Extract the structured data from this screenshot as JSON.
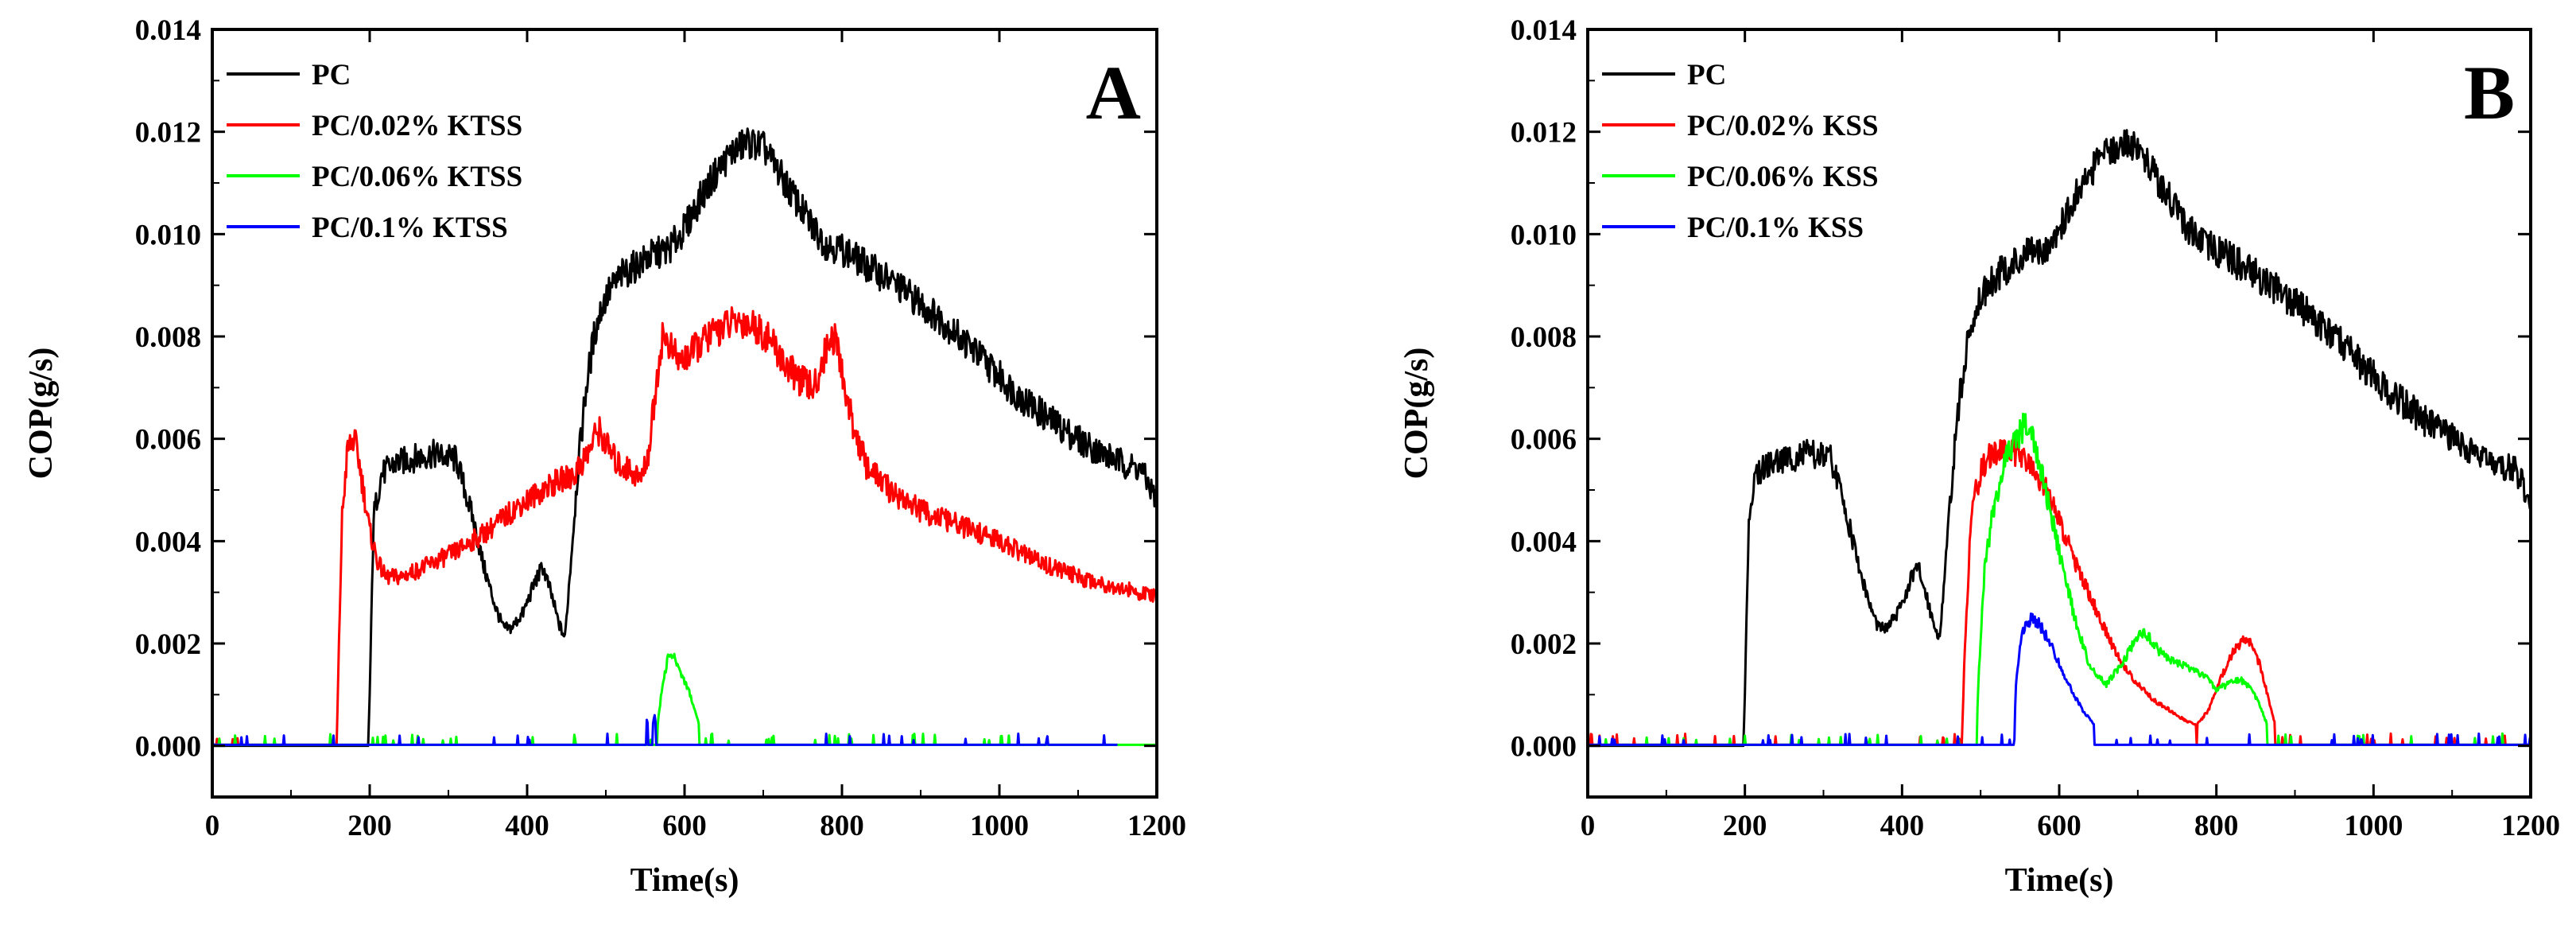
{
  "chart_data": [
    {
      "type": "line",
      "panel_label": "A",
      "xlabel": "Time(s)",
      "ylabel": "COP(g/s)",
      "xlim": [
        0,
        1200
      ],
      "ylim": [
        -0.001,
        0.014
      ],
      "xticks": [
        0,
        200,
        400,
        600,
        800,
        1000,
        1200
      ],
      "xtick_labels": [
        "0",
        "200",
        "400",
        "600",
        "800",
        "1000",
        "1200"
      ],
      "yticks": [
        0,
        0.002,
        0.004,
        0.006,
        0.008,
        0.01,
        0.012,
        0.014
      ],
      "ytick_labels": [
        "0.000",
        "0.002",
        "0.004",
        "0.006",
        "0.008",
        "0.010",
        "0.012",
        "0.014"
      ],
      "legend_position": "top-left",
      "series": [
        {
          "name": "PC",
          "color": "#000000",
          "x": [
            0,
            196,
            198,
            200,
            205,
            215,
            230,
            250,
            280,
            310,
            330,
            345,
            360,
            370,
            380,
            395,
            410,
            420,
            430,
            440,
            448,
            455,
            465,
            475,
            485,
            495,
            505,
            520,
            540,
            560,
            580,
            600,
            620,
            640,
            660,
            680,
            700,
            720,
            740,
            760,
            780,
            800,
            830,
            870,
            920,
            970,
            1020,
            1070,
            1120,
            1160,
            1180,
            1190,
            1200
          ],
          "values": [
            0,
            0,
            0,
            0.001,
            0.0045,
            0.0053,
            0.0055,
            0.0056,
            0.0057,
            0.0056,
            0.0045,
            0.0035,
            0.0027,
            0.0023,
            0.0023,
            0.0026,
            0.0032,
            0.0035,
            0.003,
            0.0024,
            0.0021,
            0.0035,
            0.0055,
            0.007,
            0.008,
            0.0086,
            0.0089,
            0.0092,
            0.0094,
            0.0096,
            0.0097,
            0.0101,
            0.0107,
            0.0112,
            0.0116,
            0.0118,
            0.0117,
            0.0112,
            0.0107,
            0.0102,
            0.0098,
            0.0097,
            0.0094,
            0.009,
            0.0084,
            0.0077,
            0.0069,
            0.0063,
            0.0058,
            0.0055,
            0.0054,
            0.0051,
            0.0048
          ]
        },
        {
          "name": "PC/0.02% KTSS",
          "color": "#ff0000",
          "x": [
            0,
            158,
            161,
            165,
            172,
            180,
            185,
            192,
            200,
            210,
            220,
            240,
            270,
            310,
            350,
            390,
            430,
            460,
            480,
            490,
            500,
            515,
            530,
            545,
            555,
            565,
            572,
            578,
            585,
            595,
            610,
            630,
            650,
            670,
            690,
            710,
            730,
            750,
            765,
            775,
            785,
            793,
            800,
            810,
            830,
            860,
            900,
            950,
            1000,
            1050,
            1100,
            1150,
            1200
          ],
          "values": [
            0,
            0,
            0.002,
            0.0045,
            0.0058,
            0.006,
            0.0057,
            0.005,
            0.0042,
            0.0036,
            0.0033,
            0.0033,
            0.0035,
            0.0038,
            0.0042,
            0.0047,
            0.0051,
            0.0053,
            0.0058,
            0.0062,
            0.0059,
            0.0055,
            0.0054,
            0.0052,
            0.0058,
            0.0072,
            0.008,
            0.0079,
            0.0077,
            0.0075,
            0.0077,
            0.008,
            0.0082,
            0.0083,
            0.0082,
            0.0079,
            0.0074,
            0.0071,
            0.007,
            0.0075,
            0.008,
            0.0079,
            0.0073,
            0.0065,
            0.0055,
            0.005,
            0.0046,
            0.0043,
            0.004,
            0.0036,
            0.0033,
            0.0031,
            0.0029
          ]
        },
        {
          "name": "PC/0.06% KTSS",
          "color": "#00ff00",
          "x": [
            0,
            560,
            565,
            572,
            580,
            588,
            596,
            605,
            615,
            625,
            630,
            1200
          ],
          "values": [
            0,
            0,
            0.0003,
            0.0012,
            0.0018,
            0.0017,
            0.0014,
            0.0011,
            0.0006,
            0.0001,
            0,
            0
          ]
        },
        {
          "name": "PC/0.1% KTSS",
          "color": "#0000ff",
          "x": [
            0,
            548,
            552,
            557,
            562,
            567,
            572,
            1150
          ],
          "values": [
            0,
            0,
            0.0005,
            0.0002,
            0.0006,
            0.0001,
            0,
            0
          ]
        }
      ]
    },
    {
      "type": "line",
      "panel_label": "B",
      "xlabel": "Time(s)",
      "ylabel": "COP(g/s)",
      "xlim": [
        0,
        1200
      ],
      "ylim": [
        -0.001,
        0.014
      ],
      "xticks": [
        0,
        200,
        400,
        600,
        800,
        1000,
        1200
      ],
      "xtick_labels": [
        "0",
        "200",
        "400",
        "600",
        "800",
        "1000",
        "1200"
      ],
      "yticks": [
        0,
        0.002,
        0.004,
        0.006,
        0.008,
        0.01,
        0.012,
        0.014
      ],
      "ytick_labels": [
        "0.000",
        "0.002",
        "0.004",
        "0.006",
        "0.008",
        "0.010",
        "0.012",
        "0.014"
      ],
      "legend_position": "top-left",
      "series": [
        {
          "name": "PC",
          "color": "#000000",
          "x": [
            0,
            196,
            198,
            200,
            205,
            215,
            230,
            250,
            280,
            310,
            330,
            345,
            360,
            370,
            380,
            395,
            410,
            420,
            430,
            440,
            448,
            455,
            465,
            475,
            485,
            495,
            505,
            520,
            540,
            560,
            580,
            600,
            620,
            640,
            660,
            680,
            700,
            720,
            740,
            760,
            780,
            800,
            830,
            870,
            920,
            970,
            1020,
            1070,
            1120,
            1160,
            1180,
            1190,
            1200
          ],
          "values": [
            0,
            0,
            0,
            0.001,
            0.0045,
            0.0053,
            0.0055,
            0.0056,
            0.0057,
            0.0056,
            0.0045,
            0.0035,
            0.0027,
            0.0023,
            0.0023,
            0.0026,
            0.0032,
            0.0035,
            0.003,
            0.0024,
            0.0021,
            0.0035,
            0.0055,
            0.007,
            0.008,
            0.0086,
            0.0089,
            0.0092,
            0.0094,
            0.0096,
            0.0097,
            0.0101,
            0.0107,
            0.0112,
            0.0116,
            0.0118,
            0.0117,
            0.0112,
            0.0107,
            0.0102,
            0.0098,
            0.0097,
            0.0094,
            0.009,
            0.0084,
            0.0077,
            0.0069,
            0.0063,
            0.0058,
            0.0055,
            0.0054,
            0.0051,
            0.0048
          ]
        },
        {
          "name": "PC/0.02% KSS",
          "color": "#ff0000",
          "x": [
            0,
            476,
            480,
            488,
            500,
            515,
            530,
            545,
            560,
            580,
            600,
            620,
            640,
            660,
            680,
            700,
            720,
            740,
            760,
            775,
            790,
            805,
            820,
            835,
            845,
            855,
            865,
            875,
            885,
            890,
            1200
          ],
          "values": [
            0,
            0,
            0.002,
            0.0045,
            0.0054,
            0.0057,
            0.0058,
            0.0057,
            0.0055,
            0.0051,
            0.0044,
            0.0036,
            0.0029,
            0.0022,
            0.0016,
            0.0012,
            0.0009,
            0.0007,
            0.0005,
            0.0004,
            0.0007,
            0.0013,
            0.0018,
            0.0021,
            0.002,
            0.0016,
            0.001,
            0.0004,
            0.0001,
            0,
            0
          ]
        },
        {
          "name": "PC/0.06% KSS",
          "color": "#00ff00",
          "x": [
            0,
            494,
            498,
            505,
            515,
            530,
            545,
            558,
            565,
            575,
            590,
            605,
            620,
            640,
            660,
            680,
            695,
            705,
            715,
            730,
            750,
            770,
            790,
            800,
            815,
            830,
            845,
            855,
            865,
            875,
            885,
            1200
          ],
          "values": [
            0,
            0,
            0.0015,
            0.0035,
            0.0045,
            0.0055,
            0.006,
            0.0063,
            0.0061,
            0.0055,
            0.0045,
            0.0034,
            0.0025,
            0.0015,
            0.0012,
            0.0016,
            0.002,
            0.0022,
            0.0021,
            0.0018,
            0.0016,
            0.0015,
            0.0013,
            0.0011,
            0.0012,
            0.0013,
            0.0011,
            0.0008,
            0.0004,
            0.0001,
            0,
            0
          ]
        },
        {
          "name": "PC/0.1% KSS",
          "color": "#0000ff",
          "x": [
            0,
            542,
            545,
            550,
            558,
            566,
            574,
            585,
            600,
            615,
            630,
            645,
            660,
            668,
            1200
          ],
          "values": [
            0,
            0,
            0.0012,
            0.002,
            0.0024,
            0.0025,
            0.0024,
            0.0021,
            0.0016,
            0.0011,
            0.0007,
            0.0004,
            0.0001,
            0,
            0
          ]
        }
      ]
    }
  ]
}
